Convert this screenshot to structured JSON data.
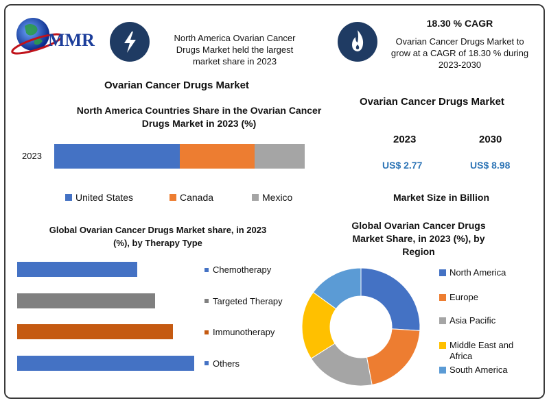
{
  "logo": {
    "text": "MMR"
  },
  "header": {
    "info_left": [
      "North America Ovarian Cancer",
      "Drugs Market held the largest",
      "market share in 2023"
    ],
    "cagr_title": "18.30 % CAGR",
    "info_right": [
      "Ovarian Cancer Drugs Market to",
      "grow at a CAGR of 18.30 % during",
      "2023-2030"
    ]
  },
  "left_title": "Ovarian Cancer Drugs Market",
  "colors": {
    "north_america": "#4472c4",
    "europe": "#ed7d31",
    "asia_pacific": "#a5a5a5",
    "mea": "#ffc000",
    "south_america": "#5b9bd5",
    "others_bar": "#4472c4",
    "chemo_bar": "#4472c4",
    "targeted_bar": "#808080",
    "immuno_bar": "#c55a11",
    "value_blue": "#2e75b6",
    "icon_bg": "#1f3b63"
  },
  "market_size": {
    "title": "Ovarian Cancer Drugs Market",
    "year1": "2023",
    "value1": "US$ 2.77",
    "year2": "2030",
    "value2": "US$ 8.98",
    "caption": "Market Size in Billion"
  },
  "chart_data": [
    {
      "type": "bar",
      "orientation": "horizontal-stacked",
      "title": "North America Countries Share in the Ovarian Cancer Drugs Market in 2023 (%)",
      "categories": [
        "2023"
      ],
      "series": [
        {
          "name": "United States",
          "values": [
            50
          ]
        },
        {
          "name": "Canada",
          "values": [
            30
          ]
        },
        {
          "name": "Mexico",
          "values": [
            20
          ]
        }
      ],
      "legend_position": "bottom"
    },
    {
      "type": "bar",
      "orientation": "horizontal",
      "title": "Global Ovarian Cancer Drugs  Market share, in 2023 (%), by Therapy Type",
      "categories": [
        "Chemotherapy",
        "Targeted Therapy",
        "Immunotherapy",
        "Others"
      ],
      "values": [
        17,
        19.5,
        22,
        25
      ],
      "legend_position": "right"
    },
    {
      "type": "pie",
      "style": "donut",
      "title": "Global Ovarian Cancer Drugs Market Share, in 2023 (%), by Region",
      "categories": [
        "North America",
        "Europe",
        "Asia Pacific",
        "Middle East and Africa",
        "South America"
      ],
      "values": [
        26,
        21,
        19,
        19,
        15
      ],
      "legend_position": "right"
    }
  ]
}
